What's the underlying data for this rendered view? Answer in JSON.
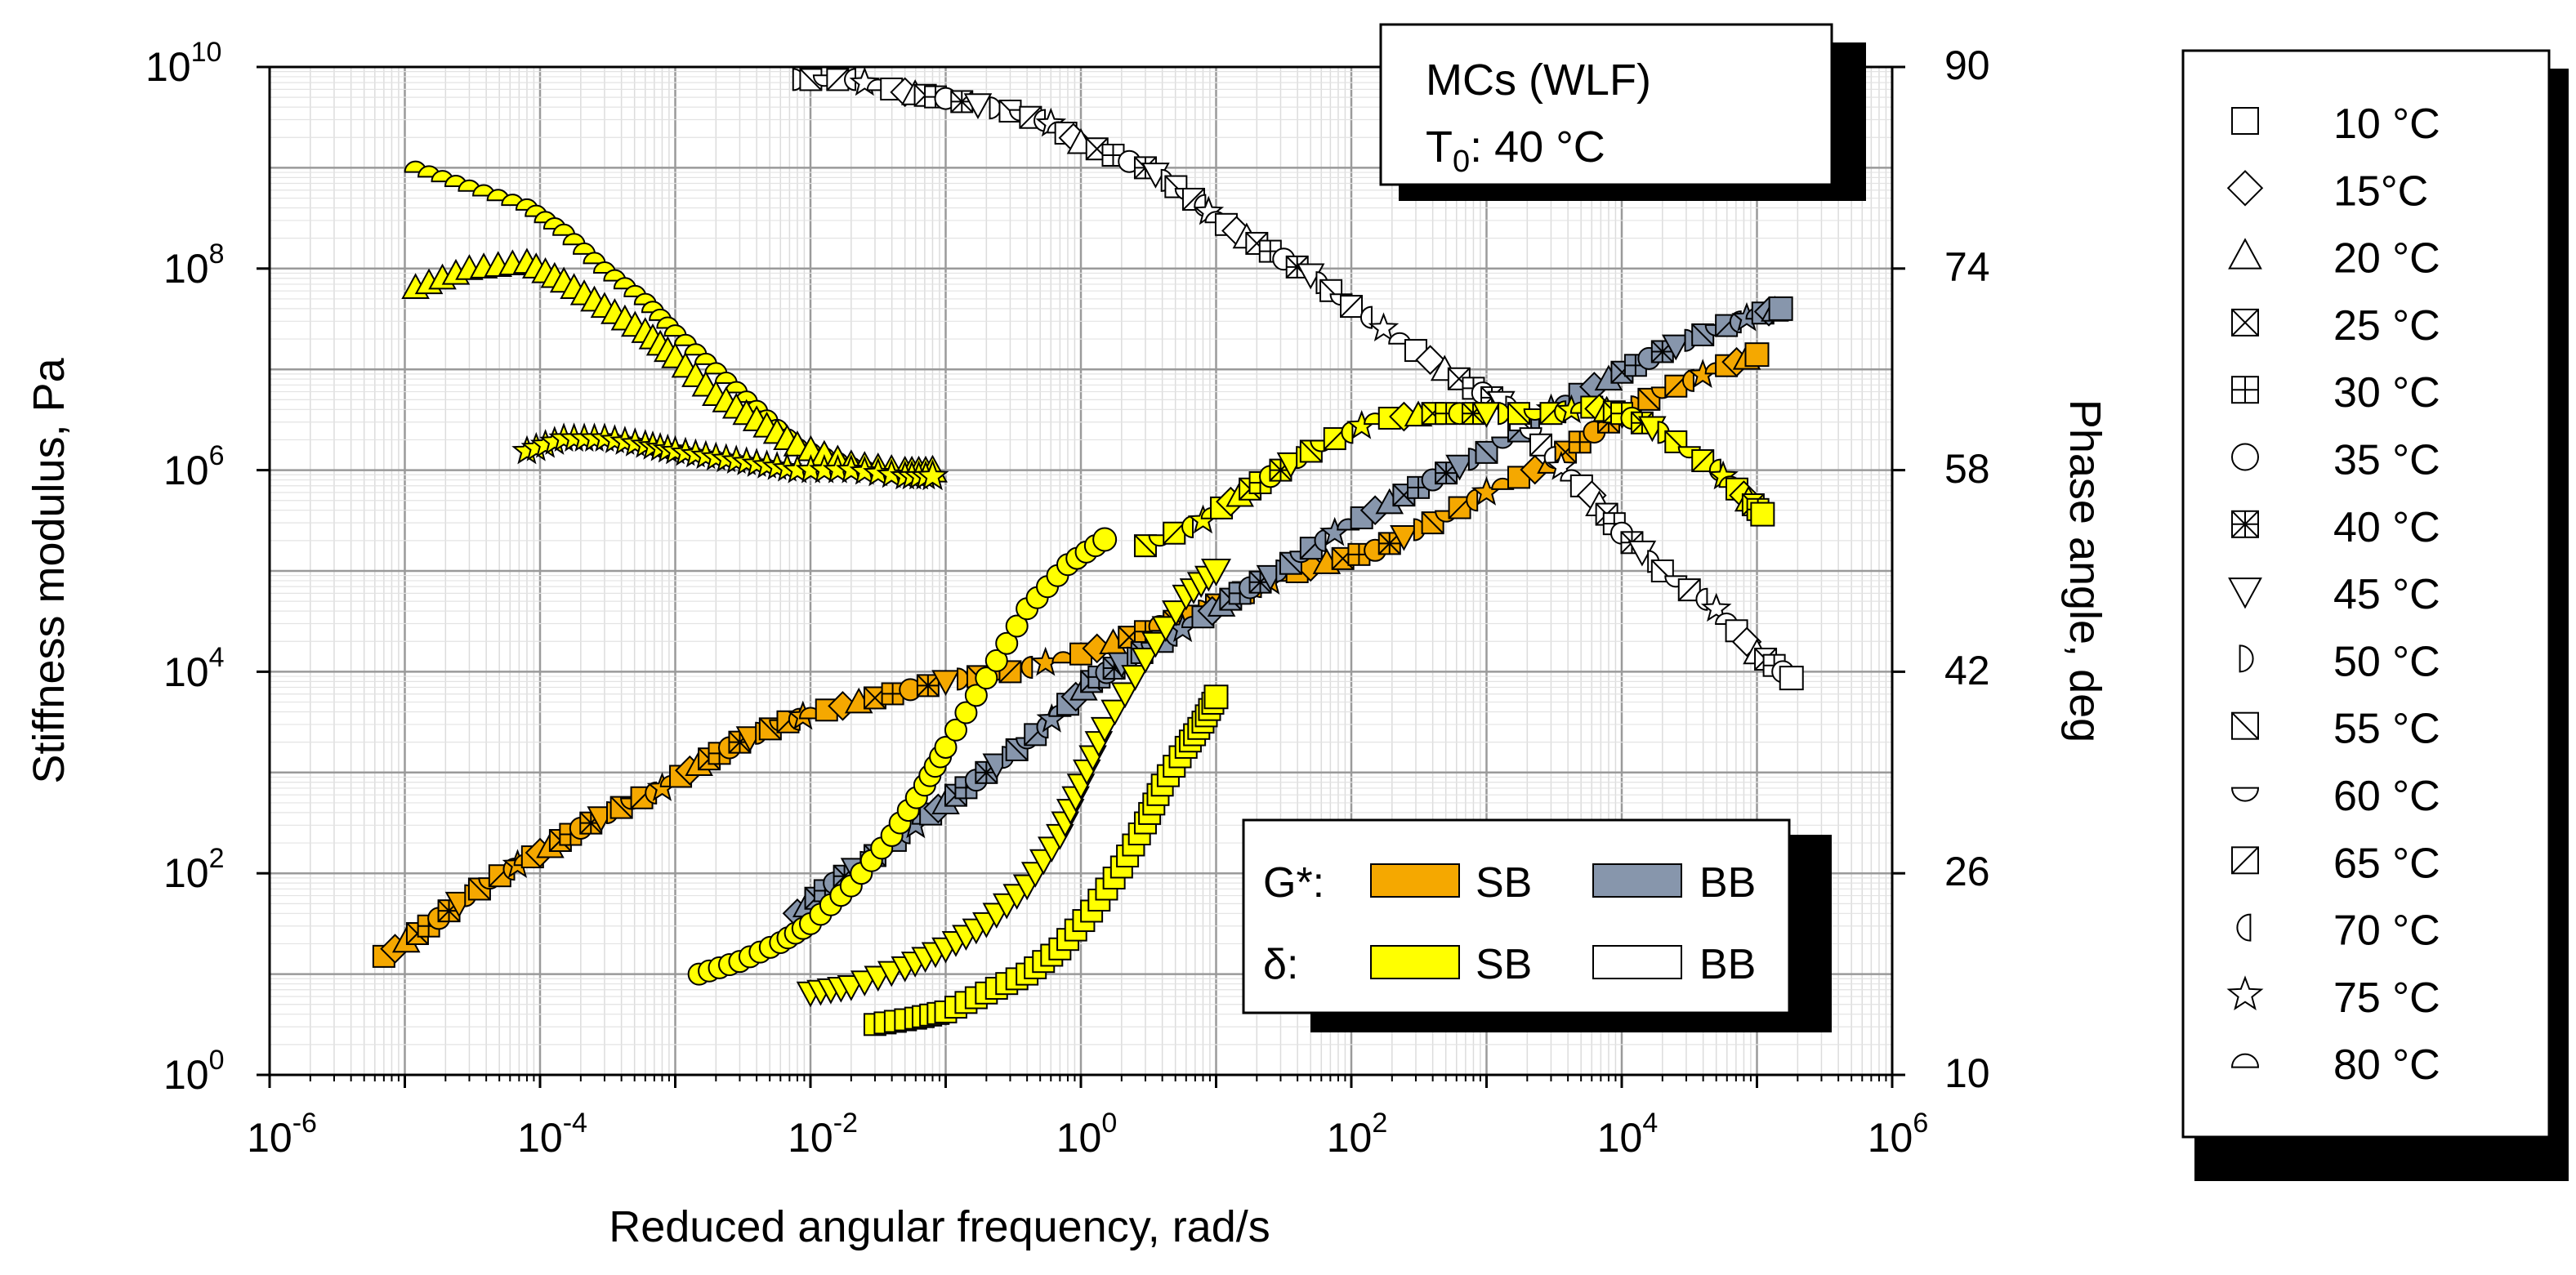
{
  "chart_data": {
    "type": "scatter",
    "xlabel": "Reduced angular frequency, rad/s",
    "ylabel": "Stiffness modulus, Pa",
    "y2label": "Phase angle, deg",
    "xscale": "log",
    "yscale": "log",
    "xlim": [
      1e-06,
      1000000.0
    ],
    "ylim": [
      1,
      10000000000.0
    ],
    "y2lim": [
      10,
      90
    ],
    "grid": true,
    "x_ticks": [
      {
        "base": "10",
        "exp": "-6"
      },
      {
        "base": "10",
        "exp": "-4"
      },
      {
        "base": "10",
        "exp": "-2"
      },
      {
        "base": "10",
        "exp": "0"
      },
      {
        "base": "10",
        "exp": "2"
      },
      {
        "base": "10",
        "exp": "4"
      },
      {
        "base": "10",
        "exp": "6"
      }
    ],
    "y_ticks": [
      {
        "base": "10",
        "exp": "0"
      },
      {
        "base": "10",
        "exp": "2"
      },
      {
        "base": "10",
        "exp": "4"
      },
      {
        "base": "10",
        "exp": "6"
      },
      {
        "base": "10",
        "exp": "8"
      },
      {
        "base": "10",
        "exp": "10"
      }
    ],
    "y2_ticks": [
      "10",
      "26",
      "42",
      "58",
      "74",
      "90"
    ],
    "annotation": {
      "line1": "MCs (WLF)",
      "line2_main": "T",
      "line2_sub": "0",
      "line2_rest": ": 40 °C"
    },
    "legend_series": {
      "g_label": "G*:",
      "d_label": "δ:",
      "sb": "SB",
      "bb": "BB",
      "placement": "bottom-right",
      "colors": {
        "g_sb": "#F5A800",
        "g_bb": "#8796AC",
        "d_sb": "#FFFF00",
        "d_bb": "#FFFFFF"
      }
    },
    "legend_temperatures": {
      "placement": "right",
      "items": [
        {
          "symbol": "square",
          "label": "10 °C"
        },
        {
          "symbol": "diamond",
          "label": "15°C"
        },
        {
          "symbol": "triangle",
          "label": "20 °C"
        },
        {
          "symbol": "square-x",
          "label": "25 °C"
        },
        {
          "symbol": "square-plus",
          "label": "30 °C"
        },
        {
          "symbol": "circle",
          "label": "35 °C"
        },
        {
          "symbol": "square-x-plus",
          "label": "40 °C"
        },
        {
          "symbol": "triangle-down",
          "label": "45 °C"
        },
        {
          "symbol": "half-circle-right",
          "label": "50 °C"
        },
        {
          "symbol": "square-diag-back",
          "label": "55 °C"
        },
        {
          "symbol": "half-circle-down",
          "label": "60 °C"
        },
        {
          "symbol": "square-diag",
          "label": "65 °C"
        },
        {
          "symbol": "half-circle-left",
          "label": "70 °C"
        },
        {
          "symbol": "star",
          "label": "75 °C"
        },
        {
          "symbol": "half-circle-up",
          "label": "80 °C"
        }
      ]
    },
    "series": [
      {
        "binder": "SB",
        "quantity": "G*",
        "axis": "left",
        "color": "#F5A800",
        "points": [
          [
            7e-06,
            15
          ],
          [
            1.5e-05,
            30
          ],
          [
            3e-05,
            60
          ],
          [
            6e-05,
            110
          ],
          [
            0.0001,
            160
          ],
          [
            0.0002,
            280
          ],
          [
            0.0004,
            450
          ],
          [
            0.0008,
            700
          ],
          [
            0.0015,
            1200
          ],
          [
            0.003,
            2000
          ],
          [
            0.006,
            3000
          ],
          [
            0.01,
            3800
          ],
          [
            0.03,
            5500
          ],
          [
            0.1,
            8000
          ],
          [
            0.3,
            10000
          ],
          [
            1,
            15000
          ],
          [
            3,
            25000
          ],
          [
            8,
            40000
          ],
          [
            20,
            70000
          ],
          [
            50,
            110000
          ],
          [
            150,
            160000
          ],
          [
            400,
            300000
          ],
          [
            1000,
            600000
          ],
          [
            3000,
            1200000.0
          ],
          [
            8000,
            3000000.0
          ],
          [
            20000,
            6000000.0
          ],
          [
            50000,
            10000000.0
          ],
          [
            100000,
            14000000.0
          ]
        ]
      },
      {
        "binder": "BB",
        "quantity": "G*",
        "axis": "left",
        "color": "#8796AC",
        "points": [
          [
            0.008,
            40
          ],
          [
            0.015,
            80
          ],
          [
            0.03,
            150
          ],
          [
            0.06,
            300
          ],
          [
            0.1,
            500
          ],
          [
            0.2,
            1000
          ],
          [
            0.4,
            2000
          ],
          [
            0.7,
            4000
          ],
          [
            1.2,
            8000
          ],
          [
            2,
            12000
          ],
          [
            4,
            20000
          ],
          [
            8,
            35000
          ],
          [
            15,
            60000
          ],
          [
            30,
            100000
          ],
          [
            60,
            200000
          ],
          [
            150,
            400000
          ],
          [
            400,
            800000
          ],
          [
            1000,
            1500000.0
          ],
          [
            3000,
            4000000.0
          ],
          [
            8000,
            8000000.0
          ],
          [
            20000,
            15000000.0
          ],
          [
            50000,
            25000000.0
          ],
          [
            100000,
            35000000.0
          ],
          [
            150000,
            40000000.0
          ]
        ]
      },
      {
        "binder": "SB",
        "quantity": "δ",
        "axis": "right",
        "color": "#FFFF00",
        "marker": "half-circle-up",
        "points": [
          [
            1.2e-05,
            82
          ],
          [
            3e-05,
            80.5
          ],
          [
            8e-05,
            79
          ],
          [
            0.00015,
            77
          ],
          [
            0.0003,
            74
          ],
          [
            0.0006,
            71.5
          ],
          [
            0.001,
            69
          ],
          [
            0.002,
            66
          ],
          [
            0.004,
            63
          ],
          [
            0.008,
            60
          ],
          [
            0.02,
            58.5
          ],
          [
            0.05,
            57.5
          ],
          [
            0.08,
            57.5
          ]
        ]
      },
      {
        "binder": "SB",
        "quantity": "δ",
        "axis": "right",
        "color": "#FFFF00",
        "marker": "triangle",
        "points": [
          [
            1.2e-05,
            72.5
          ],
          [
            3e-05,
            74
          ],
          [
            8e-05,
            74.5
          ],
          [
            0.00015,
            73
          ],
          [
            0.0003,
            71
          ],
          [
            0.0006,
            69
          ],
          [
            0.001,
            67
          ],
          [
            0.002,
            64
          ],
          [
            0.004,
            62
          ],
          [
            0.008,
            60
          ],
          [
            0.02,
            58.5
          ],
          [
            0.05,
            58
          ],
          [
            0.08,
            58
          ]
        ]
      },
      {
        "binder": "SB",
        "quantity": "δ",
        "axis": "right",
        "color": "#FFFF00",
        "marker": "star",
        "points": [
          [
            8e-05,
            59.5
          ],
          [
            0.00015,
            60.5
          ],
          [
            0.0003,
            60.5
          ],
          [
            0.0006,
            60
          ],
          [
            0.001,
            59.5
          ],
          [
            0.002,
            59
          ],
          [
            0.004,
            58.5
          ],
          [
            0.008,
            58
          ],
          [
            0.02,
            58
          ],
          [
            0.05,
            57.5
          ],
          [
            0.08,
            57.5
          ]
        ]
      },
      {
        "binder": "SB",
        "quantity": "δ",
        "axis": "right",
        "color": "#FFFF00",
        "marker": "circle",
        "points": [
          [
            0.0015,
            18
          ],
          [
            0.003,
            19
          ],
          [
            0.006,
            20.5
          ],
          [
            0.01,
            22
          ],
          [
            0.02,
            25
          ],
          [
            0.04,
            29
          ],
          [
            0.07,
            33
          ],
          [
            0.1,
            36
          ],
          [
            0.2,
            41.5
          ],
          [
            0.4,
            47
          ],
          [
            0.8,
            50.5
          ],
          [
            1.5,
            52.5
          ]
        ]
      },
      {
        "binder": "SB",
        "quantity": "δ",
        "axis": "right",
        "color": "#FFFF00",
        "marker": "triangle-down",
        "points": [
          [
            0.01,
            16.5
          ],
          [
            0.02,
            17
          ],
          [
            0.05,
            18.5
          ],
          [
            0.1,
            20
          ],
          [
            0.2,
            22
          ],
          [
            0.4,
            25
          ],
          [
            0.7,
            29
          ],
          [
            1,
            33
          ],
          [
            1.5,
            37.5
          ],
          [
            3,
            43
          ],
          [
            6,
            48
          ],
          [
            10,
            50
          ]
        ]
      },
      {
        "binder": "SB",
        "quantity": "δ",
        "axis": "right",
        "color": "#FFFF00",
        "marker": "square",
        "points": [
          [
            0.03,
            14
          ],
          [
            0.06,
            14.5
          ],
          [
            0.1,
            15
          ],
          [
            0.2,
            16.5
          ],
          [
            0.4,
            18
          ],
          [
            0.7,
            20
          ],
          [
            1.2,
            23
          ],
          [
            2,
            26.5
          ],
          [
            3,
            30
          ],
          [
            4,
            33
          ],
          [
            6,
            36
          ],
          [
            8,
            38
          ],
          [
            10,
            40
          ]
        ]
      },
      {
        "binder": "BB",
        "quantity": "δ",
        "axis": "right",
        "color": "#FFFFFF",
        "points": [
          [
            0.008,
            89
          ],
          [
            0.02,
            89
          ],
          [
            0.05,
            88
          ],
          [
            0.1,
            87.5
          ],
          [
            0.3,
            86.5
          ],
          [
            0.6,
            85.5
          ],
          [
            1,
            84
          ],
          [
            3,
            82
          ],
          [
            6,
            80
          ],
          [
            10,
            78
          ],
          [
            20,
            76
          ],
          [
            50,
            73.5
          ],
          [
            100,
            71
          ],
          [
            300,
            67.5
          ],
          [
            800,
            64.5
          ],
          [
            1500,
            63
          ],
          [
            3000,
            59
          ],
          [
            6000,
            56
          ],
          [
            10000,
            53
          ],
          [
            20000,
            50
          ],
          [
            50000,
            47
          ],
          [
            100000,
            43.5
          ],
          [
            180000,
            41.5
          ]
        ]
      },
      {
        "binder": "SB",
        "quantity": "δ",
        "axis": "right",
        "color": "#FFFF00",
        "points": [
          [
            3,
            52
          ],
          [
            8,
            54
          ],
          [
            15,
            56
          ],
          [
            30,
            58
          ],
          [
            60,
            60
          ],
          [
            150,
            62
          ],
          [
            400,
            62.5
          ],
          [
            1000,
            62.5
          ],
          [
            3000,
            62.5
          ],
          [
            6000,
            63
          ],
          [
            10000,
            62.5
          ],
          [
            20000,
            61
          ],
          [
            50000,
            58
          ],
          [
            80000,
            56
          ],
          [
            110000,
            54.5
          ]
        ]
      }
    ]
  }
}
